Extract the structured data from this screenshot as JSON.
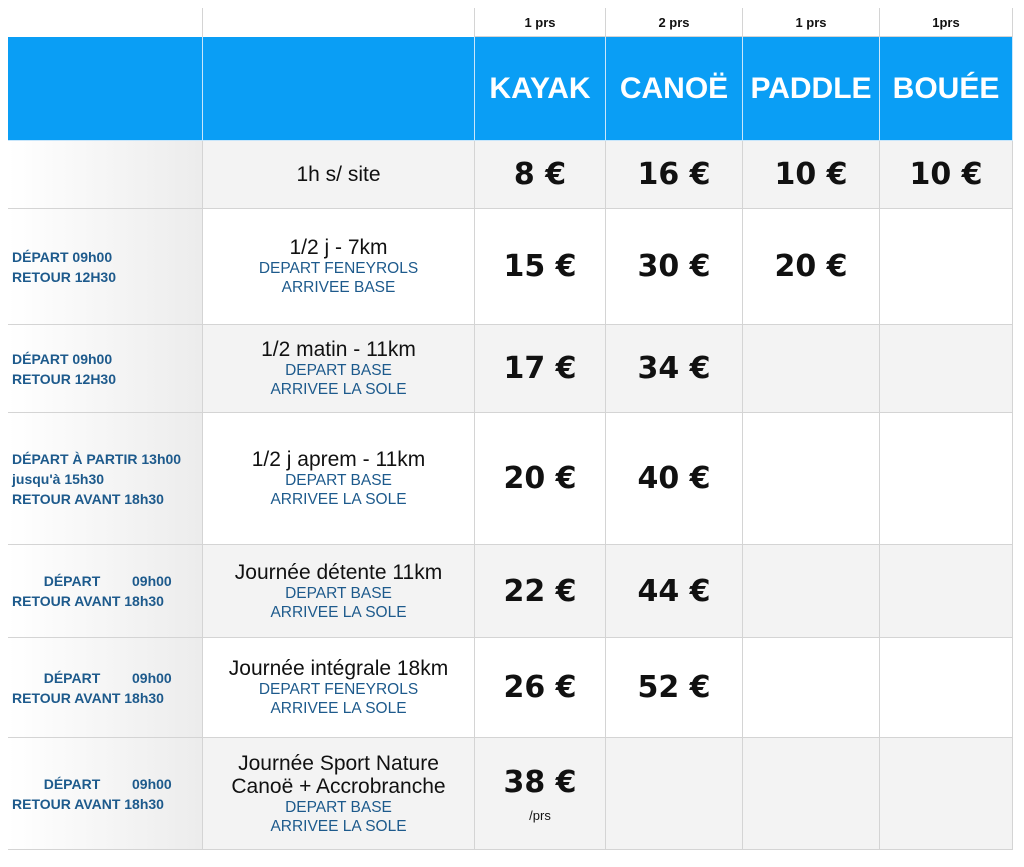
{
  "header": {
    "capacities": [
      "1 prs",
      "2 prs",
      "1 prs",
      "1prs"
    ],
    "products": [
      "KAYAK",
      "CANOË",
      "PADDLE",
      "BOUÉE"
    ]
  },
  "rows": [
    {
      "activity": [
        "1h s/ site"
      ],
      "prices": [
        "8 €",
        "16 €",
        "10 €",
        "10 €"
      ]
    },
    {
      "schedule": [
        "DÉPART  09h00",
        "RETOUR 12H30"
      ],
      "activity": [
        "1/2 j - 7km"
      ],
      "route": [
        "DEPART FENEYROLS",
        "ARRIVEE BASE"
      ],
      "prices": [
        "15 €",
        "30 €",
        "20 €"
      ]
    },
    {
      "schedule": [
        "DÉPART  09h00",
        "RETOUR 12H30"
      ],
      "activity": [
        "1/2 matin - 11km"
      ],
      "route": [
        "DEPART BASE",
        "ARRIVEE LA SOLE"
      ],
      "prices": [
        "17 €",
        "34 €"
      ]
    },
    {
      "schedule": [
        "DÉPART À PARTIR 13h00",
        "jusqu'à 15h30",
        "RETOUR AVANT 18h30"
      ],
      "activity": [
        "1/2 j aprem - 11km"
      ],
      "route": [
        "DEPART BASE",
        "ARRIVEE LA SOLE"
      ],
      "prices": [
        "20 €",
        "40 €"
      ]
    },
    {
      "schedule": [
        [
          "DÉPART",
          "09h00"
        ],
        "RETOUR AVANT 18h30"
      ],
      "activity": [
        "Journée détente 11km"
      ],
      "route": [
        "DEPART BASE",
        "ARRIVEE LA SOLE"
      ],
      "prices": [
        "22 €",
        "44 €"
      ]
    },
    {
      "schedule": [
        [
          "DÉPART",
          "09h00"
        ],
        "RETOUR AVANT 18h30"
      ],
      "activity": [
        "Journée intégrale 18km"
      ],
      "route": [
        "DEPART FENEYROLS",
        "ARRIVEE LA SOLE"
      ],
      "prices": [
        "26 €",
        "52 €"
      ]
    },
    {
      "schedule": [
        [
          "DÉPART",
          "09h00"
        ],
        "RETOUR AVANT 18h30"
      ],
      "activity": [
        "Journée Sport Nature",
        "Canoë + Accrobranche"
      ],
      "route": [
        "DEPART BASE",
        "ARRIVEE LA SOLE"
      ],
      "prices": [
        "38 €"
      ],
      "price_note": "/prs"
    }
  ]
}
